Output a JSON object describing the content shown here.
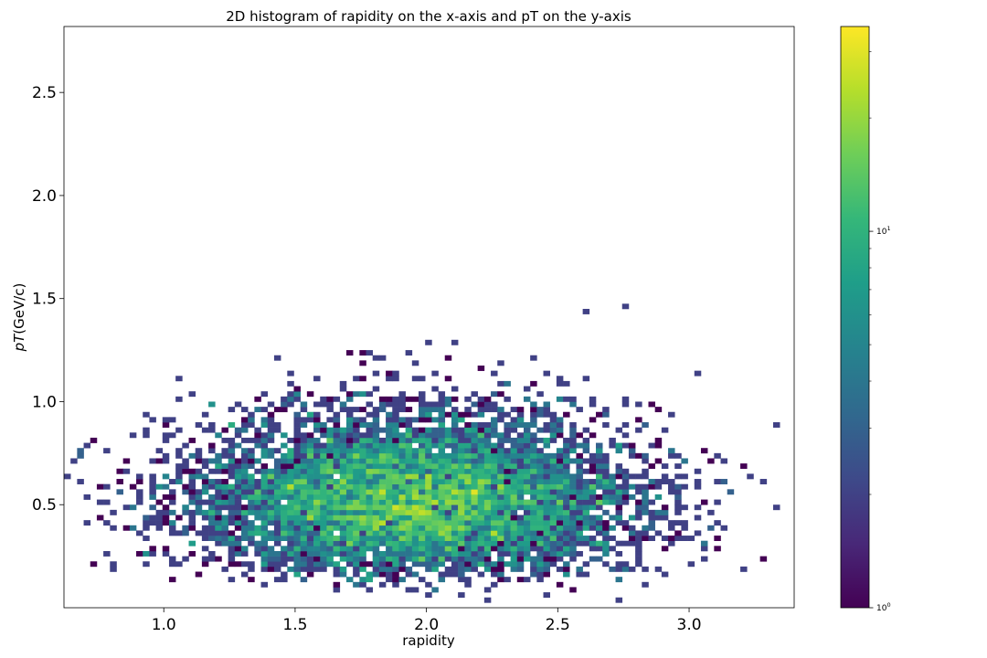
{
  "chart_data": {
    "type": "heatmap",
    "title": "2D histogram of rapidity on the x-axis and pT on the y-axis",
    "xlabel": "rapidity",
    "ylabel": "pT(GeV/c)",
    "ylabel_italic_part": "pT",
    "ylabel_unit_part": "(GeV/c)",
    "xlim": [
      0.62,
      3.4
    ],
    "ylim": [
      0.0,
      2.82
    ],
    "xticks": [
      1.0,
      1.5,
      2.0,
      2.5,
      3.0
    ],
    "xtick_labels": [
      "1.0",
      "1.5",
      "2.0",
      "2.5",
      "3.0"
    ],
    "yticks": [
      0.5,
      1.0,
      1.5,
      2.0,
      2.5
    ],
    "ytick_labels": [
      "0.5",
      "1.0",
      "1.5",
      "2.0",
      "2.5"
    ],
    "bins": {
      "x_bin_width": 0.025,
      "y_bin_width": 0.025
    },
    "colormap": "viridis",
    "color_scale": "log",
    "colorbar": {
      "range": [
        1,
        35
      ],
      "major_ticks": [
        1,
        10
      ],
      "major_tick_labels": [
        "10^0",
        "10^1"
      ],
      "minor_ticks": [
        2,
        3,
        4,
        5,
        6,
        7,
        8,
        9,
        20,
        30
      ]
    },
    "peak": {
      "x": 1.95,
      "y": 0.42,
      "count": 33
    },
    "distribution": {
      "x_mean": 1.95,
      "x_std": 0.42,
      "y_mode": 0.42,
      "y_scale": 0.38,
      "approx_entries": 12000
    },
    "grid": false,
    "colors": {
      "viridis": [
        "#440154",
        "#482878",
        "#3e4989",
        "#31688e",
        "#26828e",
        "#1f9e89",
        "#35b779",
        "#6ece58",
        "#b5de2b",
        "#fde725"
      ]
    }
  }
}
